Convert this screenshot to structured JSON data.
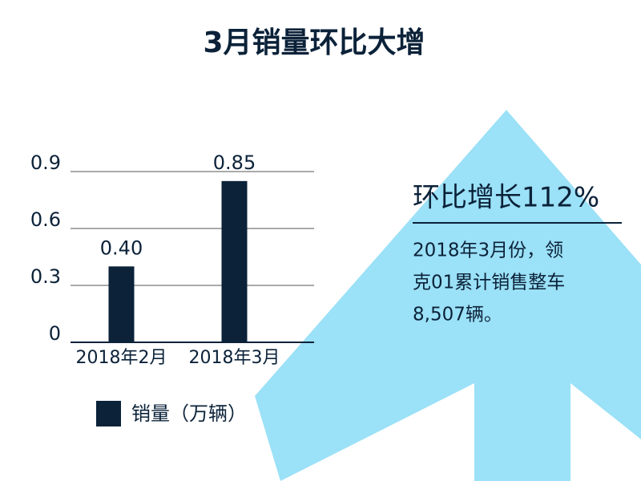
{
  "chart_data": {
    "type": "bar",
    "title": "3月销量环比大增",
    "categories": [
      "2018年2月",
      "2018年3月"
    ],
    "series": [
      {
        "name": "销量（万辆）",
        "color": "#0b2239",
        "values": [
          0.4,
          0.85
        ],
        "value_labels": [
          "0.40",
          "0.85"
        ]
      }
    ],
    "ylim": [
      0,
      0.9
    ],
    "yticks": [
      0,
      0.3,
      0.6,
      0.9
    ],
    "grid": true,
    "annotation": {
      "headline": "环比增长112%",
      "lines": [
        "2018年3月份，领",
        "克01累计销售整车",
        "8,507辆。"
      ]
    }
  }
}
